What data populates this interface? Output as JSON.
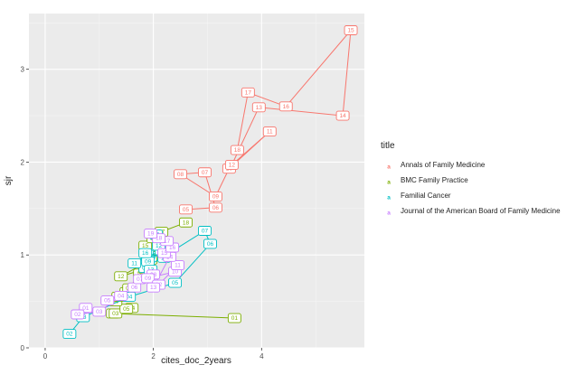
{
  "chart_data": {
    "type": "scatter",
    "xlabel": "cites_doc_2years",
    "ylabel": "sjr",
    "xlim": [
      -0.3,
      5.9
    ],
    "ylim": [
      0,
      3.6
    ],
    "x_ticks": [
      0,
      2,
      4
    ],
    "y_ticks": [
      0,
      1,
      2,
      3
    ],
    "grid": true,
    "legend_title": "title",
    "legend_position": "right",
    "connect_points": true,
    "series": [
      {
        "name": "Annals of Family Medicine",
        "color": "#F8766D",
        "points": [
          {
            "label": "05",
            "x": 2.6,
            "y": 1.49
          },
          {
            "label": "06",
            "x": 3.15,
            "y": 1.51
          },
          {
            "label": "07",
            "x": 2.95,
            "y": 1.89
          },
          {
            "label": "08",
            "x": 2.5,
            "y": 1.87
          },
          {
            "label": "09",
            "x": 3.15,
            "y": 1.63
          },
          {
            "label": "10",
            "x": 3.4,
            "y": 1.93
          },
          {
            "label": "11",
            "x": 4.15,
            "y": 2.33
          },
          {
            "label": "12",
            "x": 3.45,
            "y": 1.97
          },
          {
            "label": "13",
            "x": 3.95,
            "y": 2.59
          },
          {
            "label": "14",
            "x": 5.5,
            "y": 2.5
          },
          {
            "label": "15",
            "x": 5.65,
            "y": 3.42
          },
          {
            "label": "16",
            "x": 4.45,
            "y": 2.6
          },
          {
            "label": "17",
            "x": 3.75,
            "y": 2.75
          },
          {
            "label": "18",
            "x": 3.55,
            "y": 2.13
          }
        ]
      },
      {
        "name": "BMC Family Practice",
        "color": "#7CAE00",
        "points": [
          {
            "label": "01",
            "x": 3.5,
            "y": 0.32
          },
          {
            "label": "02",
            "x": 1.25,
            "y": 0.37
          },
          {
            "label": "03",
            "x": 1.3,
            "y": 0.37
          },
          {
            "label": "04",
            "x": 1.6,
            "y": 0.43
          },
          {
            "label": "05",
            "x": 1.5,
            "y": 0.42
          },
          {
            "label": "06",
            "x": 1.3,
            "y": 0.5
          },
          {
            "label": "07",
            "x": 1.35,
            "y": 0.55
          },
          {
            "label": "08",
            "x": 1.5,
            "y": 0.6
          },
          {
            "label": "09",
            "x": 1.55,
            "y": 0.64
          },
          {
            "label": "10",
            "x": 1.75,
            "y": 0.8
          },
          {
            "label": "11",
            "x": 1.85,
            "y": 0.85
          },
          {
            "label": "12",
            "x": 1.4,
            "y": 0.77
          },
          {
            "label": "13",
            "x": 1.95,
            "y": 0.95
          },
          {
            "label": "14",
            "x": 2.05,
            "y": 1.05
          },
          {
            "label": "15",
            "x": 1.85,
            "y": 1.1
          },
          {
            "label": "16",
            "x": 2.0,
            "y": 1.18
          },
          {
            "label": "17",
            "x": 2.15,
            "y": 1.25
          },
          {
            "label": "18",
            "x": 2.6,
            "y": 1.35
          }
        ]
      },
      {
        "name": "Familial Cancer",
        "color": "#00BFC4",
        "points": [
          {
            "label": "02",
            "x": 0.45,
            "y": 0.15
          },
          {
            "label": "03",
            "x": 0.7,
            "y": 0.33
          },
          {
            "label": "04",
            "x": 1.55,
            "y": 0.55
          },
          {
            "label": "05",
            "x": 2.4,
            "y": 0.7
          },
          {
            "label": "06",
            "x": 3.05,
            "y": 1.12
          },
          {
            "label": "07",
            "x": 2.95,
            "y": 1.26
          },
          {
            "label": "08",
            "x": 1.85,
            "y": 0.86
          },
          {
            "label": "09",
            "x": 1.9,
            "y": 0.93
          },
          {
            "label": "10",
            "x": 2.15,
            "y": 1.05
          },
          {
            "label": "11",
            "x": 1.65,
            "y": 0.91
          },
          {
            "label": "12",
            "x": 2.1,
            "y": 1.1
          },
          {
            "label": "13",
            "x": 1.95,
            "y": 0.84
          },
          {
            "label": "14",
            "x": 2.05,
            "y": 1.22
          },
          {
            "label": "15",
            "x": 2.2,
            "y": 0.97
          },
          {
            "label": "16",
            "x": 1.85,
            "y": 1.02
          }
        ]
      },
      {
        "name": "Journal of the American Board of Family Medicine",
        "color": "#C77CFF",
        "points": [
          {
            "label": "01",
            "x": 0.75,
            "y": 0.43
          },
          {
            "label": "02",
            "x": 0.6,
            "y": 0.36
          },
          {
            "label": "03",
            "x": 1.0,
            "y": 0.39
          },
          {
            "label": "04",
            "x": 1.4,
            "y": 0.56
          },
          {
            "label": "05",
            "x": 1.15,
            "y": 0.51
          },
          {
            "label": "06",
            "x": 1.65,
            "y": 0.65
          },
          {
            "label": "07",
            "x": 1.75,
            "y": 0.74
          },
          {
            "label": "08",
            "x": 2.0,
            "y": 0.79
          },
          {
            "label": "09",
            "x": 1.9,
            "y": 0.75
          },
          {
            "label": "10",
            "x": 2.4,
            "y": 0.82
          },
          {
            "label": "11",
            "x": 2.45,
            "y": 0.89
          },
          {
            "label": "12",
            "x": 2.1,
            "y": 0.68
          },
          {
            "label": "13",
            "x": 2.0,
            "y": 0.65
          },
          {
            "label": "14",
            "x": 2.3,
            "y": 0.98
          },
          {
            "label": "15",
            "x": 2.2,
            "y": 1.02
          },
          {
            "label": "16",
            "x": 2.35,
            "y": 1.08
          },
          {
            "label": "17",
            "x": 2.25,
            "y": 1.15
          },
          {
            "label": "18",
            "x": 2.1,
            "y": 1.18
          },
          {
            "label": "19",
            "x": 1.95,
            "y": 1.23
          }
        ]
      }
    ]
  }
}
